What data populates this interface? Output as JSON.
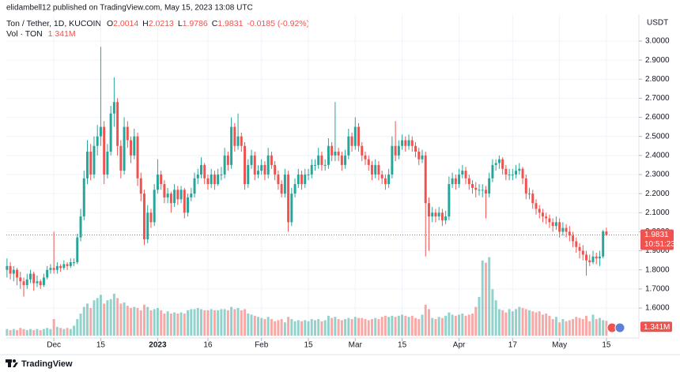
{
  "header": {
    "publisher": "elidambell12 published on TradingView.com, May 15, 2023 13:08 UTC",
    "symbol": "Ton / Tether, 1D, KUCOIN",
    "ohlc_labels": [
      "O",
      "H",
      "L",
      "C"
    ],
    "change": "-0.0185 (-0.92%)",
    "volume_title": "Vol · TON"
  },
  "chart_data": {
    "type": "candlestick",
    "currency": "USDT",
    "colors": {
      "up": "#26a69a",
      "down": "#ef5350"
    },
    "grid": true,
    "ylim": [
      1.455,
      3.091
    ],
    "yticks": [
      {
        "value": 1.6,
        "label": "1.6000"
      },
      {
        "value": 1.7,
        "label": "1.7000"
      },
      {
        "value": 1.8,
        "label": "1.8000"
      },
      {
        "value": 1.9,
        "label": "1.9000"
      },
      {
        "value": 2.0,
        "label": "2.0000"
      },
      {
        "value": 2.1,
        "label": "2.1000"
      },
      {
        "value": 2.2,
        "label": "2.2000"
      },
      {
        "value": 2.3,
        "label": "2.3000"
      },
      {
        "value": 2.4,
        "label": "2.4000"
      },
      {
        "value": 2.5,
        "label": "2.5000"
      },
      {
        "value": 2.6,
        "label": "2.6000"
      },
      {
        "value": 2.7,
        "label": "2.7000"
      },
      {
        "value": 2.8,
        "label": "2.8000"
      },
      {
        "value": 2.9,
        "label": "2.9000"
      },
      {
        "value": 3.0,
        "label": "3.0000"
      }
    ],
    "xlim": [
      -0.2,
      188.7
    ],
    "xticks": [
      {
        "value": 14,
        "label": "Dec"
      },
      {
        "value": 28,
        "label": "15"
      },
      {
        "value": 45,
        "label": "2023"
      },
      {
        "value": 60,
        "label": "16"
      },
      {
        "value": 76,
        "label": "Feb"
      },
      {
        "value": 90,
        "label": "15"
      },
      {
        "value": 104,
        "label": "Mar"
      },
      {
        "value": 118,
        "label": "15"
      },
      {
        "value": 135,
        "label": "Apr"
      },
      {
        "value": 151,
        "label": "17"
      },
      {
        "value": 165,
        "label": "May"
      },
      {
        "value": 179,
        "label": "15"
      }
    ],
    "candles": [
      [
        1.8,
        1.86,
        1.76,
        1.82
      ],
      [
        1.82,
        1.84,
        1.75,
        1.78
      ],
      [
        1.78,
        1.82,
        1.74,
        1.8
      ],
      [
        1.8,
        1.81,
        1.72,
        1.76
      ],
      [
        1.76,
        1.79,
        1.7,
        1.74
      ],
      [
        1.74,
        1.76,
        1.66,
        1.72
      ],
      [
        1.72,
        1.78,
        1.7,
        1.75
      ],
      [
        1.75,
        1.8,
        1.73,
        1.78
      ],
      [
        1.78,
        1.79,
        1.69,
        1.73
      ],
      [
        1.73,
        1.77,
        1.71,
        1.74
      ],
      [
        1.74,
        1.75,
        1.7,
        1.72
      ],
      [
        1.72,
        1.78,
        1.71,
        1.76
      ],
      [
        1.76,
        1.82,
        1.75,
        1.8
      ],
      [
        1.8,
        1.83,
        1.78,
        1.81
      ],
      [
        1.81,
        2.0,
        1.78,
        1.8
      ],
      [
        1.8,
        1.84,
        1.78,
        1.82
      ],
      [
        1.82,
        1.83,
        1.79,
        1.81
      ],
      [
        1.81,
        1.85,
        1.8,
        1.83
      ],
      [
        1.83,
        1.84,
        1.8,
        1.82
      ],
      [
        1.82,
        1.86,
        1.81,
        1.84
      ],
      [
        1.84,
        1.86,
        1.82,
        1.84
      ],
      [
        1.84,
        1.99,
        1.83,
        1.97
      ],
      [
        1.97,
        2.12,
        1.95,
        2.08
      ],
      [
        2.08,
        2.32,
        2.06,
        2.28
      ],
      [
        2.28,
        2.48,
        2.25,
        2.42
      ],
      [
        2.42,
        2.46,
        2.27,
        2.3
      ],
      [
        2.3,
        2.5,
        2.28,
        2.45
      ],
      [
        2.45,
        2.56,
        2.4,
        2.5
      ],
      [
        2.5,
        2.97,
        2.45,
        2.55
      ],
      [
        2.55,
        2.58,
        2.25,
        2.3
      ],
      [
        2.3,
        2.46,
        2.28,
        2.42
      ],
      [
        2.42,
        2.66,
        2.4,
        2.62
      ],
      [
        2.62,
        2.81,
        2.55,
        2.68
      ],
      [
        2.68,
        2.7,
        2.4,
        2.45
      ],
      [
        2.45,
        2.48,
        2.28,
        2.32
      ],
      [
        2.32,
        2.6,
        2.3,
        2.55
      ],
      [
        2.55,
        2.58,
        2.44,
        2.48
      ],
      [
        2.48,
        2.5,
        2.36,
        2.4
      ],
      [
        2.4,
        2.54,
        2.38,
        2.5
      ],
      [
        2.5,
        2.52,
        2.24,
        2.28
      ],
      [
        2.28,
        2.31,
        2.16,
        2.2
      ],
      [
        2.2,
        2.22,
        1.93,
        1.96
      ],
      [
        1.96,
        2.14,
        1.94,
        2.1
      ],
      [
        2.1,
        2.12,
        2.02,
        2.05
      ],
      [
        2.05,
        2.25,
        2.03,
        2.22
      ],
      [
        2.22,
        2.38,
        2.2,
        2.3
      ],
      [
        2.3,
        2.32,
        2.22,
        2.25
      ],
      [
        2.25,
        2.27,
        2.15,
        2.18
      ],
      [
        2.18,
        2.23,
        2.15,
        2.2
      ],
      [
        2.2,
        2.21,
        2.1,
        2.15
      ],
      [
        2.15,
        2.25,
        2.13,
        2.22
      ],
      [
        2.22,
        2.24,
        2.14,
        2.17
      ],
      [
        2.17,
        2.24,
        2.15,
        2.22
      ],
      [
        2.22,
        2.23,
        2.07,
        2.1
      ],
      [
        2.1,
        2.2,
        2.08,
        2.18
      ],
      [
        2.18,
        2.23,
        2.16,
        2.2
      ],
      [
        2.2,
        2.31,
        2.18,
        2.28
      ],
      [
        2.28,
        2.33,
        2.25,
        2.3
      ],
      [
        2.3,
        2.39,
        2.28,
        2.35
      ],
      [
        2.35,
        2.36,
        2.25,
        2.28
      ],
      [
        2.28,
        2.3,
        2.22,
        2.25
      ],
      [
        2.25,
        2.33,
        2.23,
        2.3
      ],
      [
        2.3,
        2.32,
        2.22,
        2.25
      ],
      [
        2.25,
        2.33,
        2.24,
        2.3
      ],
      [
        2.3,
        2.34,
        2.27,
        2.3
      ],
      [
        2.3,
        2.44,
        2.28,
        2.4
      ],
      [
        2.4,
        2.42,
        2.32,
        2.35
      ],
      [
        2.35,
        2.6,
        2.33,
        2.55
      ],
      [
        2.55,
        2.57,
        2.42,
        2.45
      ],
      [
        2.45,
        2.62,
        2.43,
        2.5
      ],
      [
        2.5,
        2.52,
        2.42,
        2.45
      ],
      [
        2.45,
        2.47,
        2.22,
        2.25
      ],
      [
        2.25,
        2.38,
        2.23,
        2.35
      ],
      [
        2.35,
        2.43,
        2.33,
        2.4
      ],
      [
        2.4,
        2.42,
        2.27,
        2.3
      ],
      [
        2.3,
        2.35,
        2.28,
        2.32
      ],
      [
        2.32,
        2.38,
        2.3,
        2.35
      ],
      [
        2.35,
        2.37,
        2.27,
        2.3
      ],
      [
        2.3,
        2.44,
        2.28,
        2.4
      ],
      [
        2.4,
        2.42,
        2.33,
        2.35
      ],
      [
        2.35,
        2.37,
        2.27,
        2.3
      ],
      [
        2.3,
        2.32,
        2.22,
        2.25
      ],
      [
        2.25,
        2.27,
        2.18,
        2.2
      ],
      [
        2.2,
        2.33,
        2.18,
        2.3
      ],
      [
        2.3,
        2.32,
        2.0,
        2.05
      ],
      [
        2.05,
        2.23,
        2.03,
        2.2
      ],
      [
        2.2,
        2.28,
        2.18,
        2.25
      ],
      [
        2.25,
        2.33,
        2.23,
        2.3
      ],
      [
        2.3,
        2.32,
        2.22,
        2.25
      ],
      [
        2.25,
        2.33,
        2.23,
        2.3
      ],
      [
        2.3,
        2.33,
        2.27,
        2.3
      ],
      [
        2.3,
        2.38,
        2.28,
        2.35
      ],
      [
        2.35,
        2.38,
        2.32,
        2.35
      ],
      [
        2.35,
        2.44,
        2.33,
        2.4
      ],
      [
        2.4,
        2.42,
        2.32,
        2.35
      ],
      [
        2.35,
        2.38,
        2.32,
        2.35
      ],
      [
        2.35,
        2.49,
        2.33,
        2.45
      ],
      [
        2.45,
        2.47,
        2.37,
        2.4
      ],
      [
        2.4,
        2.68,
        2.37,
        2.42
      ],
      [
        2.42,
        2.44,
        2.37,
        2.4
      ],
      [
        2.4,
        2.42,
        2.32,
        2.35
      ],
      [
        2.35,
        2.43,
        2.33,
        2.4
      ],
      [
        2.4,
        2.54,
        2.38,
        2.5
      ],
      [
        2.5,
        2.52,
        2.42,
        2.45
      ],
      [
        2.45,
        2.6,
        2.43,
        2.55
      ],
      [
        2.55,
        2.57,
        2.42,
        2.45
      ],
      [
        2.45,
        2.47,
        2.37,
        2.4
      ],
      [
        2.4,
        2.42,
        2.35,
        2.38
      ],
      [
        2.38,
        2.4,
        2.32,
        2.35
      ],
      [
        2.35,
        2.37,
        2.27,
        2.3
      ],
      [
        2.3,
        2.38,
        2.28,
        2.35
      ],
      [
        2.35,
        2.37,
        2.27,
        2.3
      ],
      [
        2.3,
        2.32,
        2.25,
        2.28
      ],
      [
        2.28,
        2.3,
        2.22,
        2.25
      ],
      [
        2.25,
        2.33,
        2.23,
        2.3
      ],
      [
        2.3,
        2.5,
        2.28,
        2.45
      ],
      [
        2.45,
        2.58,
        2.37,
        2.4
      ],
      [
        2.4,
        2.48,
        2.38,
        2.45
      ],
      [
        2.45,
        2.51,
        2.43,
        2.48
      ],
      [
        2.48,
        2.5,
        2.42,
        2.45
      ],
      [
        2.45,
        2.51,
        2.43,
        2.48
      ],
      [
        2.48,
        2.5,
        2.42,
        2.45
      ],
      [
        2.45,
        2.47,
        2.39,
        2.42
      ],
      [
        2.42,
        2.44,
        2.35,
        2.38
      ],
      [
        2.38,
        2.43,
        2.36,
        2.4
      ],
      [
        2.4,
        2.42,
        1.87,
        2.15
      ],
      [
        2.15,
        2.18,
        1.9,
        2.08
      ],
      [
        2.08,
        2.13,
        2.05,
        2.1
      ],
      [
        2.1,
        2.12,
        2.05,
        2.08
      ],
      [
        2.08,
        2.13,
        2.06,
        2.1
      ],
      [
        2.1,
        2.12,
        2.03,
        2.06
      ],
      [
        2.06,
        2.11,
        2.04,
        2.08
      ],
      [
        2.08,
        2.29,
        2.06,
        2.25
      ],
      [
        2.25,
        2.31,
        2.23,
        2.28
      ],
      [
        2.28,
        2.3,
        2.22,
        2.25
      ],
      [
        2.25,
        2.33,
        2.23,
        2.3
      ],
      [
        2.3,
        2.35,
        2.28,
        2.32
      ],
      [
        2.32,
        2.34,
        2.25,
        2.28
      ],
      [
        2.28,
        2.3,
        2.22,
        2.25
      ],
      [
        2.25,
        2.27,
        2.2,
        2.23
      ],
      [
        2.23,
        2.26,
        2.18,
        2.22
      ],
      [
        2.22,
        2.25,
        2.19,
        2.22
      ],
      [
        2.22,
        2.25,
        2.18,
        2.22
      ],
      [
        2.22,
        2.24,
        2.07,
        2.2
      ],
      [
        2.2,
        2.31,
        2.18,
        2.28
      ],
      [
        2.28,
        2.38,
        2.26,
        2.35
      ],
      [
        2.35,
        2.38,
        2.32,
        2.36
      ],
      [
        2.36,
        2.4,
        2.33,
        2.38
      ],
      [
        2.38,
        2.39,
        2.3,
        2.33
      ],
      [
        2.33,
        2.35,
        2.27,
        2.3
      ],
      [
        2.3,
        2.33,
        2.27,
        2.3
      ],
      [
        2.3,
        2.33,
        2.27,
        2.3
      ],
      [
        2.3,
        2.35,
        2.28,
        2.32
      ],
      [
        2.32,
        2.36,
        2.3,
        2.33
      ],
      [
        2.33,
        2.34,
        2.25,
        2.28
      ],
      [
        2.28,
        2.3,
        2.17,
        2.2
      ],
      [
        2.2,
        2.23,
        2.17,
        2.2
      ],
      [
        2.2,
        2.22,
        2.12,
        2.15
      ],
      [
        2.15,
        2.17,
        2.09,
        2.12
      ],
      [
        2.12,
        2.14,
        2.07,
        2.1
      ],
      [
        2.1,
        2.12,
        2.05,
        2.08
      ],
      [
        2.08,
        2.1,
        2.04,
        2.07
      ],
      [
        2.07,
        2.09,
        2.02,
        2.05
      ],
      [
        2.05,
        2.07,
        2.0,
        2.03
      ],
      [
        2.03,
        2.08,
        2.01,
        2.05
      ],
      [
        2.05,
        2.07,
        1.97,
        2.0
      ],
      [
        2.0,
        2.05,
        1.98,
        2.02
      ],
      [
        2.02,
        2.04,
        1.97,
        2.0
      ],
      [
        2.0,
        2.03,
        1.95,
        1.98
      ],
      [
        1.98,
        2.0,
        1.92,
        1.95
      ],
      [
        1.95,
        1.97,
        1.89,
        1.92
      ],
      [
        1.92,
        1.94,
        1.86,
        1.9
      ],
      [
        1.9,
        1.93,
        1.85,
        1.88
      ],
      [
        1.88,
        1.9,
        1.77,
        1.85
      ],
      [
        1.85,
        1.88,
        1.82,
        1.84
      ],
      [
        1.84,
        1.9,
        1.83,
        1.87
      ],
      [
        1.87,
        1.89,
        1.83,
        1.86
      ],
      [
        1.86,
        1.9,
        1.82,
        1.87
      ],
      [
        1.87,
        2.01,
        1.86,
        2.0016
      ],
      [
        2.0014,
        2.0213,
        1.9786,
        1.9831
      ]
    ],
    "volume": [
      0.6,
      0.5,
      0.6,
      0.5,
      0.7,
      0.6,
      0.5,
      0.6,
      0.5,
      0.6,
      0.5,
      0.6,
      0.7,
      0.6,
      1.5,
      0.8,
      0.7,
      0.6,
      0.7,
      0.6,
      0.9,
      1.5,
      2.0,
      2.6,
      2.9,
      2.5,
      3.2,
      3.4,
      3.7,
      2.9,
      3.2,
      3.3,
      3.8,
      3.4,
      2.9,
      3.0,
      2.7,
      2.5,
      2.6,
      2.5,
      2.3,
      2.8,
      2.6,
      2.3,
      2.4,
      2.5,
      2.3,
      2.0,
      2.2,
      2.0,
      2.1,
      2.0,
      2.1,
      2.0,
      2.3,
      2.4,
      2.4,
      2.5,
      2.4,
      2.3,
      2.3,
      2.4,
      2.3,
      2.3,
      2.4,
      2.4,
      2.3,
      2.6,
      2.4,
      2.5,
      2.3,
      2.4,
      2.0,
      1.9,
      1.8,
      1.7,
      1.6,
      1.5,
      1.7,
      1.5,
      1.3,
      1.4,
      1.5,
      1.2,
      1.7,
      1.5,
      1.3,
      1.4,
      1.3,
      1.4,
      1.3,
      1.5,
      1.4,
      1.5,
      1.3,
      1.4,
      1.8,
      1.6,
      1.7,
      1.5,
      1.4,
      1.5,
      1.6,
      1.5,
      1.7,
      1.6,
      1.6,
      1.5,
      1.4,
      1.5,
      1.6,
      1.5,
      1.7,
      1.8,
      1.7,
      1.8,
      1.7,
      1.8,
      1.9,
      1.8,
      1.7,
      1.8,
      1.6,
      1.5,
      1.9,
      2.8,
      2.4,
      1.6,
      1.5,
      1.7,
      1.6,
      1.8,
      2.1,
      1.9,
      1.8,
      1.9,
      2.0,
      1.8,
      1.9,
      2.0,
      2.6,
      3.5,
      6.8,
      6.6,
      7.1,
      4.2,
      3.2,
      2.4,
      2.3,
      2.1,
      2.4,
      2.2,
      2.4,
      2.6,
      2.5,
      2.4,
      2.3,
      2.2,
      2.1,
      2.2,
      1.9,
      2.0,
      1.8,
      1.5,
      1.7,
      1.2,
      1.5,
      1.3,
      1.4,
      1.5,
      1.7,
      1.6,
      1.5,
      1.8,
      1.3,
      1.9,
      1.5,
      1.6,
      1.4,
      1.341
    ],
    "volume_label": "1.341M",
    "countdown": "10:51:23"
  },
  "footer": {
    "brand": "TradingView"
  }
}
